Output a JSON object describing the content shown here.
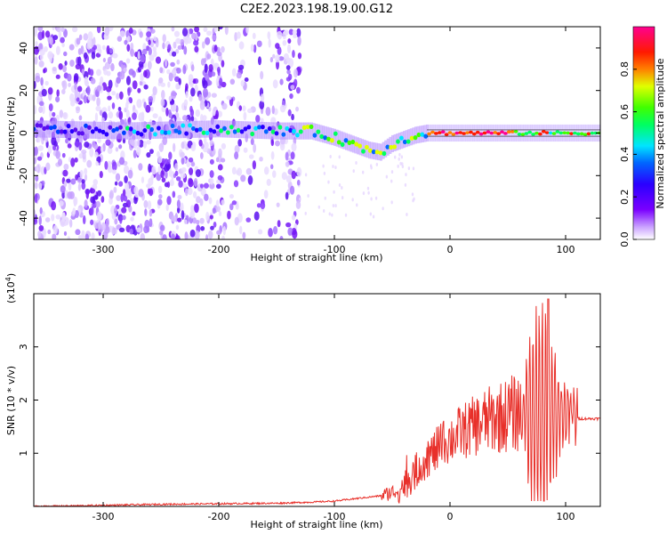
{
  "title": "C2E2.2023.198.19.00.G12",
  "chart_data": [
    {
      "type": "heatmap",
      "xlabel": "Height of straight line (km)",
      "ylabel": "Frequency (Hz)",
      "xlim": [
        -360,
        130
      ],
      "ylim": [
        -50,
        50
      ],
      "xticks": [
        -300,
        -200,
        -100,
        0,
        100
      ],
      "yticks": [
        -40,
        -20,
        0,
        20,
        40
      ],
      "colorbar": {
        "label": "Normalized spectral amplitude",
        "range": [
          0.0,
          1.0
        ],
        "ticks": [
          "0.0",
          "0.2",
          "0.4",
          "0.6",
          "0.8"
        ],
        "colormap": "rainbow (white-violet-blue-cyan-green-yellow-red-pink)"
      },
      "ridge": {
        "description": "main spectral ridge frequency (Hz) vs height (km)",
        "x": [
          -360,
          -280,
          -200,
          -150,
          -120,
          -100,
          -80,
          -70,
          -60,
          -50,
          -40,
          -30,
          -20,
          0,
          50,
          100,
          130
        ],
        "y": [
          2,
          1,
          2,
          1,
          1,
          -2,
          -6,
          -8,
          -9,
          -5,
          -3,
          -1,
          0,
          0,
          0,
          0,
          0
        ]
      },
      "noise_region_x": [
        -360,
        -130
      ]
    },
    {
      "type": "line",
      "xlabel": "Height of straight line (km)",
      "ylabel": "SNR (10 * v/v)",
      "y_multiplier_label": "(x10",
      "y_multiplier_exp": "4",
      "y_multiplier_close": ")",
      "xlim": [
        -360,
        130
      ],
      "ylim": [
        0,
        4
      ],
      "xticks": [
        -300,
        -200,
        -100,
        0,
        100
      ],
      "yticks": [
        1,
        2,
        3
      ],
      "series": [
        {
          "color": "#e8302a",
          "x": [
            -360,
            -300,
            -250,
            -200,
            -150,
            -120,
            -100,
            -80,
            -60,
            -45,
            -35,
            -25,
            -15,
            -5,
            10,
            30,
            50,
            60
          ],
          "y": [
            0.0,
            0.02,
            0.04,
            0.05,
            0.06,
            0.08,
            0.1,
            0.15,
            0.2,
            0.3,
            0.5,
            0.8,
            1.0,
            1.2,
            1.4,
            1.6,
            1.72,
            1.78
          ]
        }
      ],
      "oscillation_region": {
        "x": [
          62,
          110
        ],
        "peak": 3.9,
        "trough": 0.1
      },
      "tail": {
        "x": [
          110,
          130
        ],
        "y": 1.65
      }
    }
  ]
}
